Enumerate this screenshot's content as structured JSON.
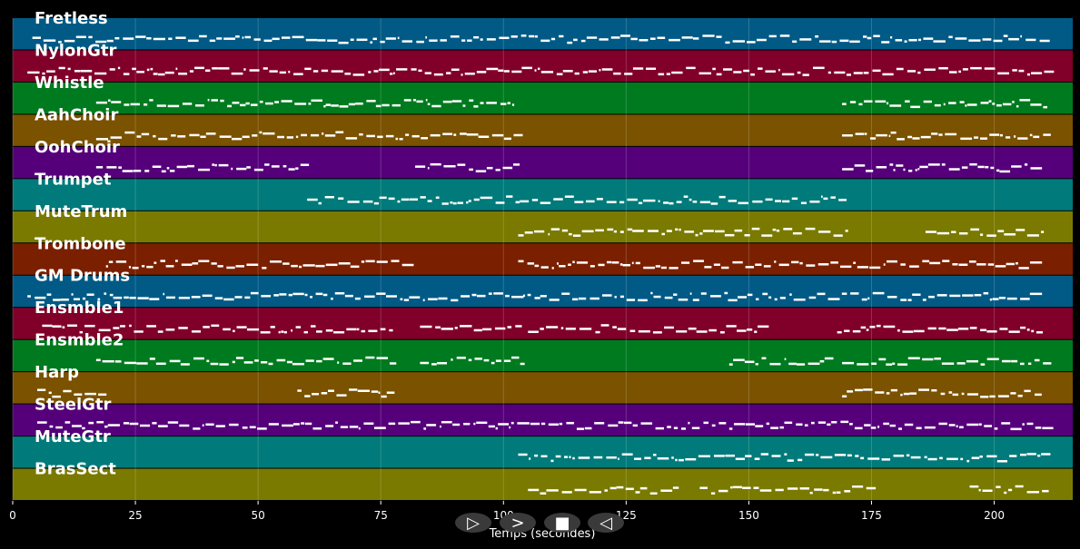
{
  "chart_data": {
    "type": "piano-roll",
    "xlabel": "Temps (secondes)",
    "xlim": [
      0,
      216
    ],
    "xticks": [
      0,
      25,
      50,
      75,
      100,
      125,
      150,
      175,
      200
    ],
    "grid": true,
    "tracks": [
      {
        "name": "Fretless",
        "color": "#005a85",
        "segments": [
          [
            4,
            210
          ]
        ]
      },
      {
        "name": "NylonGtr",
        "color": "#80002a",
        "segments": [
          [
            3,
            211
          ]
        ]
      },
      {
        "name": "Whistle",
        "color": "#007a1e",
        "segments": [
          [
            17,
            102
          ],
          [
            169,
            210
          ]
        ]
      },
      {
        "name": "AahChoir",
        "color": "#7a5200",
        "segments": [
          [
            17,
            103
          ],
          [
            169,
            210
          ]
        ]
      },
      {
        "name": "OohChoir",
        "color": "#55007a",
        "segments": [
          [
            17,
            60
          ],
          [
            82,
            102
          ],
          [
            169,
            210
          ]
        ]
      },
      {
        "name": "Trumpet",
        "color": "#007a7a",
        "segments": [
          [
            60,
            170
          ]
        ]
      },
      {
        "name": "MuteTrum",
        "color": "#7a7a00",
        "segments": [
          [
            103,
            170
          ],
          [
            186,
            210
          ]
        ]
      },
      {
        "name": "Trombone",
        "color": "#7a2000",
        "segments": [
          [
            19,
            81
          ],
          [
            103,
            210
          ]
        ]
      },
      {
        "name": "GM Drums",
        "color": "#005a85",
        "segments": [
          [
            3,
            103
          ],
          [
            104,
            209
          ]
        ]
      },
      {
        "name": "Ensmble1",
        "color": "#80002a",
        "segments": [
          [
            6,
            77
          ],
          [
            83,
            104
          ],
          [
            105,
            153
          ],
          [
            168,
            210
          ]
        ]
      },
      {
        "name": "Ensmble2",
        "color": "#007a1e",
        "segments": [
          [
            17,
            77
          ],
          [
            83,
            104
          ],
          [
            146,
            166
          ],
          [
            169,
            210
          ]
        ]
      },
      {
        "name": "Harp",
        "color": "#7a5200",
        "segments": [
          [
            5,
            18
          ],
          [
            58,
            77
          ],
          [
            169,
            210
          ]
        ]
      },
      {
        "name": "SteelGtr",
        "color": "#55007a",
        "segments": [
          [
            5,
            211
          ]
        ]
      },
      {
        "name": "MuteGtr",
        "color": "#007a7a",
        "segments": [
          [
            103,
            210
          ]
        ]
      },
      {
        "name": "BrasSect",
        "color": "#7a7a00",
        "segments": [
          [
            105,
            135
          ],
          [
            140,
            175
          ],
          [
            195,
            210
          ]
        ]
      }
    ]
  },
  "controls": [
    {
      "name": "play-button",
      "icon": "play-icon",
      "glyph": "▷"
    },
    {
      "name": "forward-button",
      "icon": "chevron-right-icon",
      "glyph": ">"
    },
    {
      "name": "stop-button",
      "icon": "stop-icon",
      "glyph": "■"
    },
    {
      "name": "rewind-button",
      "icon": "rewind-icon",
      "glyph": "◁"
    }
  ]
}
